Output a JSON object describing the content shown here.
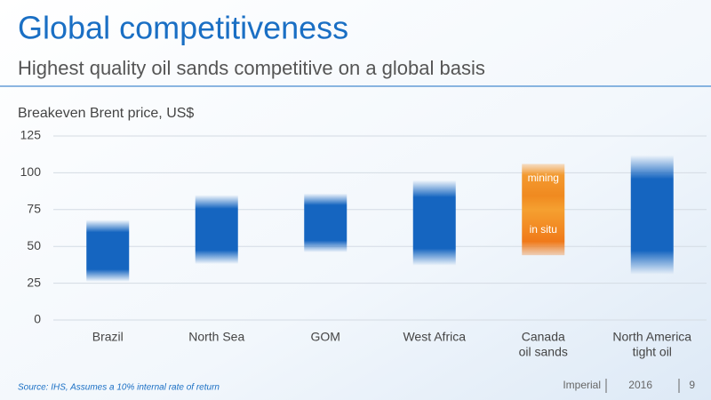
{
  "header": {
    "title": "Global competitiveness",
    "subtitle": "Highest quality oil sands competitive on a global basis"
  },
  "chart_data": {
    "type": "range-bar",
    "y_label": "Breakeven Brent price, US$",
    "categories": [
      [
        "Brazil"
      ],
      [
        "North Sea"
      ],
      [
        "GOM"
      ],
      [
        "West Africa"
      ],
      [
        "Canada",
        "oil sands"
      ],
      [
        "North America",
        "tight oil"
      ]
    ],
    "low": [
      26,
      38,
      46,
      37,
      44,
      31
    ],
    "high": [
      68,
      85,
      86,
      95,
      106,
      112
    ],
    "colors": [
      "#1565c0",
      "#1565c0",
      "#1565c0",
      "#1565c0",
      "#f07a1a",
      "#1565c0"
    ],
    "annotations": [
      {
        "text": "mining",
        "category": 4,
        "y": 96
      },
      {
        "text": "in situ",
        "category": 4,
        "y": 61
      }
    ],
    "ylim": [
      0,
      125
    ],
    "yticks": [
      0,
      25,
      50,
      75,
      100,
      125
    ],
    "grid": true
  },
  "footer": {
    "source": "Source: IHS, Assumes a 10% internal rate of return",
    "company": "Imperial",
    "year": "2016",
    "page": "9"
  }
}
